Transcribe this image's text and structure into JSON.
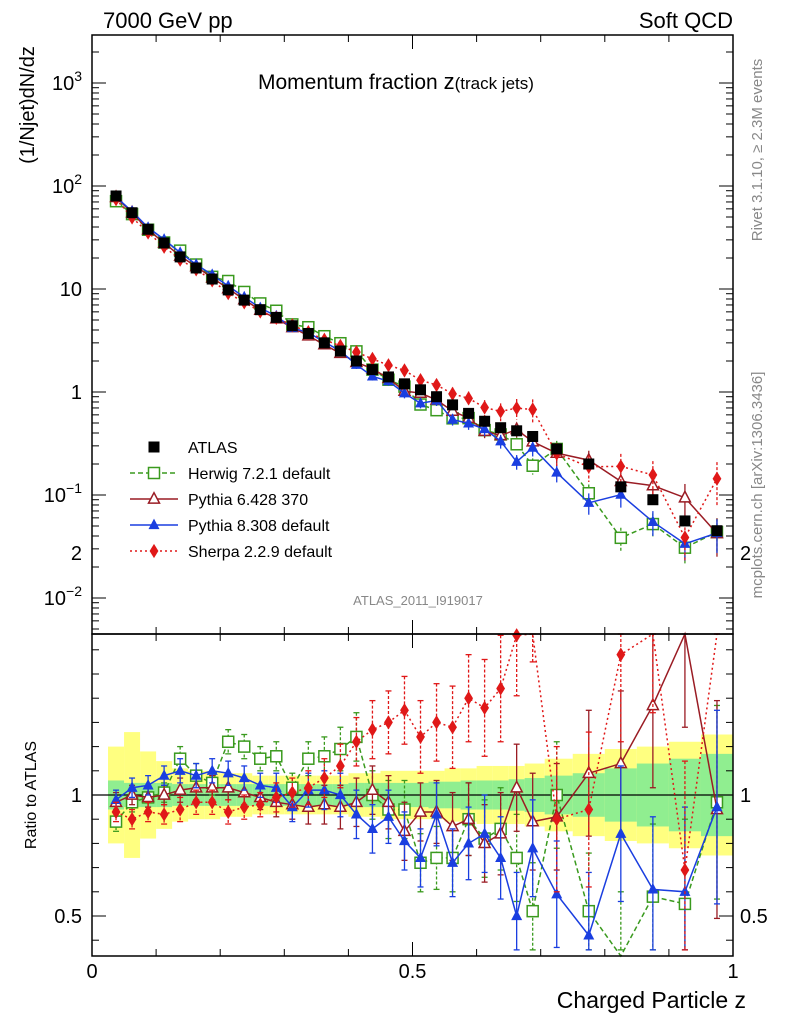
{
  "header": {
    "left": "7000 GeV pp",
    "right": "Soft QCD"
  },
  "side_labels": {
    "top": "Rivet 3.1.10, ≥ 2.3M events",
    "bottom": "mcplots.cern.ch [arXiv:1306.3436]"
  },
  "watermark": "ATLAS_2011_I919017",
  "chart_data": {
    "type": "scatter",
    "title_main": "Momentum fraction ",
    "title_z": "z",
    "title_sub": "(track jets)",
    "ylabel": "(1/Njet)dN/dz",
    "xlabel": "Charged Particle z",
    "ratio_ylabel": "Ratio to ATLAS",
    "xlim": [
      0,
      1
    ],
    "ylim": [
      0.004,
      3000
    ],
    "yscale": "log",
    "ratio_ylim": [
      0.35,
      2.35
    ],
    "x_ticks": [
      0,
      0.5,
      1
    ],
    "x_tick_labels": [
      "0",
      "0.5",
      "1"
    ],
    "y_tick_labels": [
      {
        "value": 1000,
        "base": "10",
        "exp": "3"
      },
      {
        "value": 100,
        "base": "10",
        "exp": "2"
      },
      {
        "value": 10,
        "base": "10",
        "exp": ""
      },
      {
        "value": 1,
        "base": "1",
        "exp": ""
      },
      {
        "value": 0.1,
        "base": "10",
        "exp": "−1"
      },
      {
        "value": 0.01,
        "base": "10",
        "exp": "−2"
      }
    ],
    "ratio_y_ticks": [
      0.5,
      1,
      2
    ],
    "ratio_y_tick_labels": [
      "0.5",
      "1",
      "2"
    ],
    "legend_position": "bottom-left",
    "x": [
      0.0375,
      0.0625,
      0.0875,
      0.1125,
      0.1375,
      0.1625,
      0.1875,
      0.2125,
      0.2375,
      0.2625,
      0.2875,
      0.3125,
      0.3375,
      0.3625,
      0.3875,
      0.4125,
      0.4375,
      0.4625,
      0.4875,
      0.5125,
      0.5375,
      0.5625,
      0.5875,
      0.6125,
      0.6375,
      0.6625,
      0.6875,
      0.725,
      0.775,
      0.825,
      0.875,
      0.925,
      0.975
    ],
    "data": {
      "name": "ATLAS",
      "values": [
        80,
        55,
        38,
        28,
        20.5,
        16,
        12.5,
        9.8,
        7.8,
        6.3,
        5.3,
        4.4,
        3.7,
        3.0,
        2.5,
        2.0,
        1.65,
        1.4,
        1.2,
        1.05,
        0.9,
        0.75,
        0.62,
        0.52,
        0.45,
        0.42,
        0.37,
        0.28,
        0.2,
        0.12,
        0.09,
        0.056,
        0.045
      ],
      "band_inner": [
        0.06,
        0.05,
        0.05,
        0.05,
        0.045,
        0.045,
        0.045,
        0.045,
        0.045,
        0.045,
        0.045,
        0.045,
        0.045,
        0.045,
        0.045,
        0.05,
        0.05,
        0.05,
        0.05,
        0.05,
        0.055,
        0.055,
        0.06,
        0.06,
        0.06,
        0.065,
        0.07,
        0.08,
        0.09,
        0.11,
        0.13,
        0.15,
        0.17
      ],
      "band_outer": [
        0.2,
        0.26,
        0.18,
        0.14,
        0.11,
        0.1,
        0.1,
        0.09,
        0.09,
        0.08,
        0.08,
        0.08,
        0.08,
        0.08,
        0.08,
        0.09,
        0.09,
        0.1,
        0.1,
        0.1,
        0.1,
        0.11,
        0.11,
        0.12,
        0.12,
        0.12,
        0.13,
        0.15,
        0.17,
        0.19,
        0.2,
        0.22,
        0.25
      ]
    },
    "series": [
      {
        "name": "Herwig 7.2.1 default",
        "color": "#3a9a1e",
        "marker": "open-square",
        "dash": "5,3",
        "ratio": [
          0.89,
          0.97,
          0.99,
          1.01,
          1.15,
          1.08,
          1.05,
          1.22,
          1.2,
          1.15,
          1.16,
          1.03,
          1.15,
          1.16,
          1.19,
          1.24,
          1.0,
          0.94,
          0.94,
          0.72,
          0.74,
          0.74,
          0.9,
          0.82,
          0.86,
          0.74,
          0.52,
          1.0,
          0.52,
          0.32,
          0.58,
          0.55,
          0.97
        ],
        "ratio_err": [
          0.04,
          0.04,
          0.04,
          0.04,
          0.05,
          0.05,
          0.05,
          0.05,
          0.05,
          0.05,
          0.06,
          0.06,
          0.07,
          0.08,
          0.09,
          0.1,
          0.1,
          0.12,
          0.12,
          0.12,
          0.13,
          0.14,
          0.15,
          0.16,
          0.17,
          0.18,
          0.2,
          0.22,
          0.24,
          0.28,
          0.3,
          0.35,
          0.4
        ]
      },
      {
        "name": "Pythia 6.428 370",
        "color": "#9a1c24",
        "marker": "open-triangle",
        "dash": "",
        "ratio": [
          0.97,
          1.0,
          0.99,
          1.0,
          1.02,
          1.03,
          1.03,
          1.03,
          1.01,
          0.99,
          0.97,
          0.96,
          0.95,
          0.96,
          0.95,
          0.97,
          1.02,
          0.97,
          0.85,
          0.93,
          0.93,
          0.87,
          0.9,
          0.8,
          0.84,
          1.03,
          0.89,
          0.91,
          1.09,
          1.13,
          1.37,
          1.68,
          0.94
        ],
        "ratio_err": [
          0.04,
          0.04,
          0.04,
          0.04,
          0.05,
          0.05,
          0.05,
          0.05,
          0.05,
          0.05,
          0.06,
          0.06,
          0.07,
          0.08,
          0.09,
          0.1,
          0.1,
          0.11,
          0.12,
          0.12,
          0.13,
          0.14,
          0.15,
          0.16,
          0.17,
          0.18,
          0.2,
          0.22,
          0.26,
          0.3,
          0.34,
          0.4,
          0.45
        ]
      },
      {
        "name": "Pythia 8.308 default",
        "color": "#1a3ee0",
        "marker": "filled-triangle",
        "dash": "",
        "ratio": [
          0.98,
          1.03,
          1.04,
          1.08,
          1.1,
          1.08,
          1.1,
          1.09,
          1.07,
          1.04,
          1.03,
          0.95,
          1.02,
          1.02,
          1.0,
          0.92,
          0.86,
          0.91,
          0.81,
          0.74,
          0.92,
          0.72,
          0.8,
          0.84,
          0.74,
          0.5,
          0.78,
          0.59,
          0.42,
          0.84,
          0.61,
          0.6,
          0.95
        ],
        "ratio_err": [
          0.04,
          0.04,
          0.04,
          0.04,
          0.05,
          0.05,
          0.05,
          0.05,
          0.05,
          0.05,
          0.06,
          0.06,
          0.07,
          0.08,
          0.09,
          0.1,
          0.1,
          0.11,
          0.12,
          0.12,
          0.13,
          0.14,
          0.15,
          0.16,
          0.17,
          0.18,
          0.2,
          0.22,
          0.26,
          0.28,
          0.3,
          0.35,
          0.4
        ]
      },
      {
        "name": "Sherpa 2.2.9 default",
        "color": "#e01818",
        "marker": "filled-diamond",
        "dash": "2,3",
        "ratio": [
          0.93,
          0.9,
          0.93,
          0.92,
          0.94,
          0.97,
          0.97,
          0.93,
          0.95,
          0.96,
          0.99,
          1.01,
          1.03,
          1.07,
          1.12,
          1.22,
          1.27,
          1.3,
          1.35,
          1.24,
          1.3,
          1.28,
          1.4,
          1.36,
          1.44,
          1.66,
          1.83,
          0.9,
          0.94,
          1.58,
          1.74,
          0.69,
          3.2
        ],
        "ratio_err": [
          0.04,
          0.04,
          0.04,
          0.04,
          0.05,
          0.05,
          0.05,
          0.05,
          0.05,
          0.05,
          0.06,
          0.06,
          0.07,
          0.08,
          0.09,
          0.1,
          0.12,
          0.13,
          0.14,
          0.15,
          0.16,
          0.17,
          0.18,
          0.2,
          0.22,
          0.25,
          0.28,
          0.3,
          0.32,
          0.36,
          0.4,
          0.45,
          0.5
        ]
      }
    ]
  }
}
